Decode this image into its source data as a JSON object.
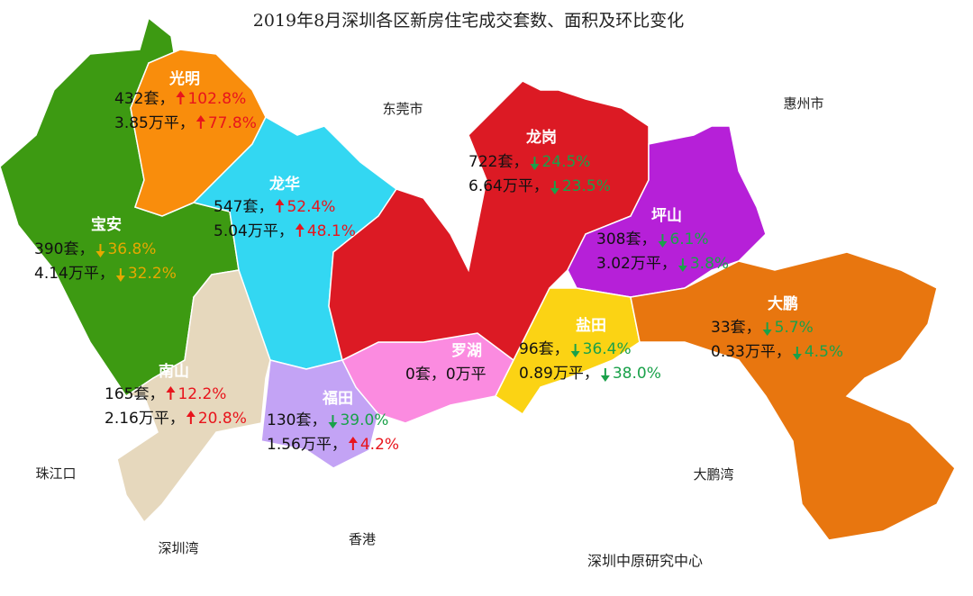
{
  "title": "2019年8月深圳各区新房住宅成交套数、面积及环比变化",
  "districts": [
    {
      "name": "光明",
      "units": "432套，",
      "units_change": "102.8%",
      "units_dir": "up",
      "units_color": "#e8141c",
      "area": "3.85万平，",
      "area_change": "77.8%",
      "area_dir": "up",
      "area_color": "#e8141c"
    },
    {
      "name": "宝安",
      "units": "390套，",
      "units_change": "36.8%",
      "units_dir": "down",
      "units_color": "#e6a800",
      "area": "4.14万平，",
      "area_change": "32.2%",
      "area_dir": "down",
      "area_color": "#e6a800"
    },
    {
      "name": "龙华",
      "units": "547套，",
      "units_change": "52.4%",
      "units_dir": "up",
      "units_color": "#e8141c",
      "area": "5.04万平，",
      "area_change": "48.1%",
      "area_dir": "up",
      "area_color": "#e8141c"
    },
    {
      "name": "龙岗",
      "units": "722套，",
      "units_change": "24.5%",
      "units_dir": "down",
      "units_color": "#1aa14a",
      "area": "6.64万平，",
      "area_change": "23.5%",
      "area_dir": "down",
      "area_color": "#1aa14a"
    },
    {
      "name": "坪山",
      "units": "308套，",
      "units_change": "6.1%",
      "units_dir": "down",
      "units_color": "#1aa14a",
      "area": "3.02万平，",
      "area_change": "3.8%",
      "area_dir": "down",
      "area_color": "#1aa14a"
    },
    {
      "name": "大鹏",
      "units": "33套，",
      "units_change": "5.7%",
      "units_dir": "down",
      "units_color": "#1aa14a",
      "area": "0.33万平，",
      "area_change": "4.5%",
      "area_dir": "down",
      "area_color": "#1aa14a"
    },
    {
      "name": "盐田",
      "units": "96套，",
      "units_change": "36.4%",
      "units_dir": "down",
      "units_color": "#1aa14a",
      "area": "0.89万平，",
      "area_change": "38.0%",
      "area_dir": "down",
      "area_color": "#1aa14a"
    },
    {
      "name": "罗湖",
      "units": "0套，",
      "area": "0万平"
    },
    {
      "name": "南山",
      "units": "165套，",
      "units_change": "12.2%",
      "units_dir": "up",
      "units_color": "#e8141c",
      "area": "2.16万平，",
      "area_change": "20.8%",
      "area_dir": "up",
      "area_color": "#e8141c"
    },
    {
      "name": "福田",
      "units": "130套，",
      "units_change": "39.0%",
      "units_dir": "down",
      "units_color": "#1aa14a",
      "area": "1.56万平，",
      "area_change": "4.2%",
      "area_dir": "up",
      "area_color": "#e8141c"
    }
  ],
  "places": [
    "东莞市",
    "惠州市",
    "珠江口",
    "深圳湾",
    "香港",
    "大鹏湾"
  ],
  "source": "深圳中原研究中心"
}
